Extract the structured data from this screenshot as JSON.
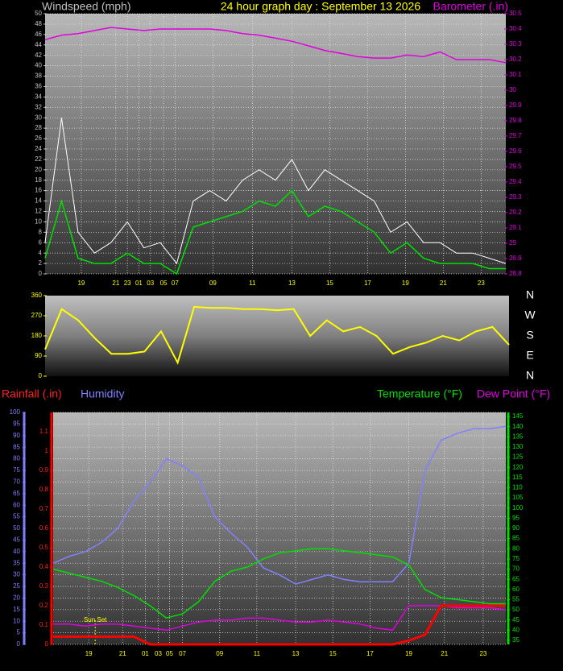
{
  "chart_data": [
    {
      "type": "line",
      "title": "24 hour graph day : September 13 2026",
      "ylabel": "Windspeed (mph)",
      "y2label": "Barometer (.in)",
      "x": [
        0,
        1,
        2,
        3,
        4,
        5,
        6,
        7,
        8,
        9,
        10,
        11,
        12,
        13,
        14,
        15,
        16,
        17,
        18,
        19,
        20,
        21,
        22,
        23,
        24,
        25,
        26,
        27,
        28
      ],
      "xlim": [
        0,
        28
      ],
      "xticks": [
        {
          "value": 2.2,
          "label": "19"
        },
        {
          "value": 4.3,
          "label": "21"
        },
        {
          "value": 5.0,
          "label": "23"
        },
        {
          "value": 5.7,
          "label": "01"
        },
        {
          "value": 6.4,
          "label": "03"
        },
        {
          "value": 7.2,
          "label": "05"
        },
        {
          "value": 7.9,
          "label": "07"
        },
        {
          "value": 10.2,
          "label": "09"
        },
        {
          "value": 12.6,
          "label": "11"
        },
        {
          "value": 15.0,
          "label": "13"
        },
        {
          "value": 17.3,
          "label": "15"
        },
        {
          "value": 19.6,
          "label": "17"
        },
        {
          "value": 21.9,
          "label": "19"
        },
        {
          "value": 24.2,
          "label": "21"
        },
        {
          "value": 26.5,
          "label": "23"
        }
      ],
      "ylim": [
        0,
        50
      ],
      "yticks": [
        0,
        2,
        4,
        6,
        8,
        10,
        12,
        14,
        16,
        18,
        20,
        22,
        24,
        26,
        28,
        30,
        32,
        34,
        36,
        38,
        40,
        42,
        44,
        46,
        48,
        50
      ],
      "y2lim": [
        28.8,
        30.5
      ],
      "y2ticks": [
        28.8,
        28.9,
        29,
        29.1,
        29.2,
        29.3,
        29.4,
        29.5,
        29.6,
        29.7,
        29.8,
        29.9,
        30,
        30.1,
        30.2,
        30.3,
        30.4,
        30.5
      ],
      "grid": true,
      "series": [
        {
          "color": "#ffffff",
          "values": [
            6,
            30,
            8,
            4,
            6,
            10,
            5,
            6,
            2,
            14,
            16,
            14,
            18,
            20,
            18,
            22,
            16,
            20,
            18,
            16,
            14,
            8,
            10,
            6,
            6,
            4,
            4,
            3,
            2
          ]
        },
        {
          "color": "#00e000",
          "values": [
            3,
            14,
            3,
            2,
            2,
            4,
            2,
            2,
            0,
            9,
            10,
            11,
            12,
            14,
            13,
            16,
            11,
            13,
            12,
            10,
            8,
            4,
            6,
            3,
            2,
            2,
            2,
            1,
            1
          ]
        },
        {
          "color": "#e000e0",
          "axis": "y2",
          "values": [
            30.33,
            30.36,
            30.37,
            30.39,
            30.41,
            30.4,
            30.39,
            30.4,
            30.4,
            30.4,
            30.4,
            30.39,
            30.37,
            30.36,
            30.34,
            30.32,
            30.29,
            30.26,
            30.24,
            30.22,
            30.21,
            30.21,
            30.23,
            30.22,
            30.25,
            30.2,
            30.2,
            30.2,
            30.18
          ]
        }
      ]
    },
    {
      "type": "line",
      "x": [
        0,
        1,
        2,
        3,
        4,
        5,
        6,
        7,
        8,
        9,
        10,
        11,
        12,
        13,
        14,
        15,
        16,
        17,
        18,
        19,
        20,
        21,
        22,
        23,
        24,
        25,
        26,
        27,
        28
      ],
      "xlim": [
        0,
        28
      ],
      "ylim": [
        0,
        360
      ],
      "yticks": [
        0,
        90,
        180,
        270,
        360
      ],
      "y2lim": [
        0,
        360
      ],
      "y2ticks": [
        {
          "value": 360,
          "label": "N"
        },
        {
          "value": 270,
          "label": "W"
        },
        {
          "value": 180,
          "label": "S"
        },
        {
          "value": 90,
          "label": "E"
        },
        {
          "value": 0,
          "label": "N"
        }
      ],
      "grid": false,
      "series": [
        {
          "color": "#ffff00",
          "values": [
            120,
            300,
            250,
            170,
            100,
            100,
            110,
            200,
            60,
            310,
            305,
            305,
            300,
            300,
            295,
            300,
            180,
            250,
            200,
            220,
            180,
            100,
            130,
            150,
            180,
            160,
            200,
            220,
            140
          ]
        }
      ]
    },
    {
      "type": "line",
      "ylabel": "Humidity",
      "y2label": "Temperature (°F)",
      "y3label": "Rainfall (.in)",
      "y4label": "Dew Point (°F)",
      "x": [
        0,
        1,
        2,
        3,
        4,
        5,
        6,
        7,
        8,
        9,
        10,
        11,
        12,
        13,
        14,
        15,
        16,
        17,
        18,
        19,
        20,
        21,
        22,
        23,
        24,
        25,
        26,
        27,
        28
      ],
      "xlim": [
        0,
        28
      ],
      "xticks": [
        {
          "value": 2.2,
          "label": "19"
        },
        {
          "value": 4.3,
          "label": "21"
        },
        {
          "value": 5.7,
          "label": "01"
        },
        {
          "value": 6.5,
          "label": "03"
        },
        {
          "value": 7.2,
          "label": "05"
        },
        {
          "value": 8.0,
          "label": "07"
        },
        {
          "value": 10.3,
          "label": "09"
        },
        {
          "value": 12.6,
          "label": "11"
        },
        {
          "value": 15.0,
          "label": "13"
        },
        {
          "value": 17.3,
          "label": "15"
        },
        {
          "value": 19.6,
          "label": "17"
        },
        {
          "value": 22.0,
          "label": "19"
        },
        {
          "value": 24.2,
          "label": "21"
        },
        {
          "value": 26.6,
          "label": "23"
        }
      ],
      "ylim": [
        0,
        100
      ],
      "yticks": [
        0,
        5,
        10,
        15,
        20,
        25,
        30,
        35,
        40,
        45,
        50,
        55,
        60,
        65,
        70,
        75,
        80,
        85,
        90,
        95,
        100
      ],
      "y2lim": [
        33,
        147
      ],
      "y2ticks": [
        35,
        40,
        45,
        50,
        55,
        60,
        65,
        70,
        75,
        80,
        85,
        90,
        95,
        100,
        105,
        110,
        115,
        120,
        125,
        130,
        135,
        140,
        145
      ],
      "y3lim": [
        0,
        1.2
      ],
      "y3ticks": [
        0,
        0.1,
        0.2,
        0.3,
        0.4,
        0.5,
        0.6,
        0.7,
        0.8,
        0.9,
        1,
        1.1
      ],
      "grid": true,
      "annotations": [
        {
          "text": "Sun Set",
          "x": 2.6
        }
      ],
      "series": [
        {
          "color": "#8080ff",
          "values": [
            35,
            38,
            40,
            44,
            50,
            62,
            70,
            80,
            77,
            72,
            55,
            48,
            42,
            33,
            30,
            26,
            28,
            30,
            28,
            27,
            27,
            27,
            35,
            75,
            88,
            91,
            93,
            93,
            94
          ]
        },
        {
          "color": "#00e000",
          "axis": "y2",
          "values": [
            70,
            68,
            66,
            64,
            61,
            57,
            52,
            46,
            48,
            54,
            64,
            69,
            71,
            75,
            78,
            79,
            80,
            80,
            79,
            78,
            77,
            76,
            72,
            60,
            56,
            55,
            54,
            53,
            53
          ]
        },
        {
          "color": "#e000e0",
          "axis": "y2",
          "values": [
            43,
            43,
            42,
            43,
            43,
            42,
            41,
            40,
            42,
            44,
            45,
            45,
            46,
            46,
            45,
            44,
            44,
            45,
            44,
            43,
            41,
            40,
            52,
            52,
            52,
            51,
            51,
            51,
            50
          ]
        },
        {
          "color": "#ff0000",
          "axis": "y3",
          "values": [
            0.04,
            0.04,
            0.04,
            0.04,
            0.04,
            0.04,
            0,
            0,
            0,
            0,
            0,
            0,
            0,
            0,
            0,
            0,
            0,
            0,
            0,
            0,
            0,
            0,
            0.02,
            0.05,
            0.2,
            0.2,
            0.2,
            0.2,
            0.2
          ]
        }
      ]
    }
  ]
}
